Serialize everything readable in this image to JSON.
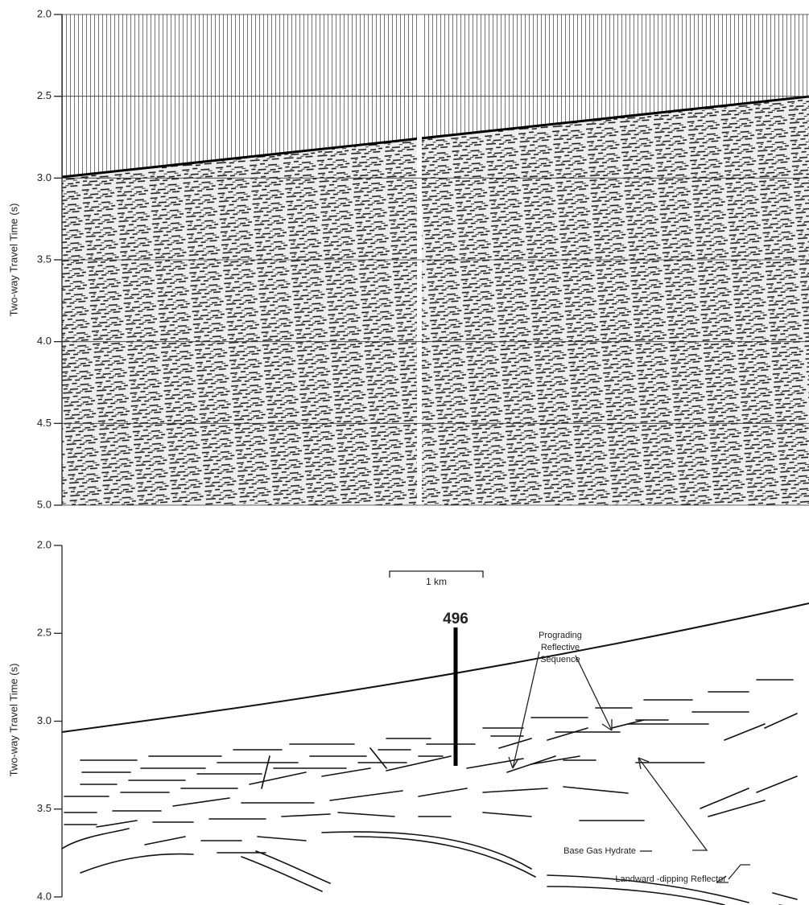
{
  "seismic_section": {
    "y_label": "Two-way Travel Time (s)",
    "ylim": [
      2,
      5
    ],
    "yticks": [
      {
        "value": 2,
        "label": "2.0"
      },
      {
        "value": 2.5,
        "label": "2.5"
      },
      {
        "value": 3,
        "label": "3.0"
      },
      {
        "value": 3.5,
        "label": "3.5"
      },
      {
        "value": 4,
        "label": "4.0"
      },
      {
        "value": 4.5,
        "label": "4.5"
      },
      {
        "value": 5,
        "label": "5.0"
      }
    ]
  },
  "interpretation": {
    "y_label": "Two-way Travel Time (s)",
    "ylim": [
      2,
      4
    ],
    "yticks": [
      {
        "value": 2,
        "label": "2.0"
      },
      {
        "value": 2.5,
        "label": "2.5"
      },
      {
        "value": 3,
        "label": "3.0"
      },
      {
        "value": 3.5,
        "label": "3.5"
      },
      {
        "value": 4,
        "label": "4.0"
      }
    ],
    "scale_bar": "1 km",
    "site": "496",
    "annotations": {
      "prograding": [
        "Prograding",
        "Reflective",
        "Sequence"
      ],
      "base_gas_hydrate": "Base Gas  Hydrate",
      "landward_reflector": "Landward -dipping Reflector"
    }
  }
}
